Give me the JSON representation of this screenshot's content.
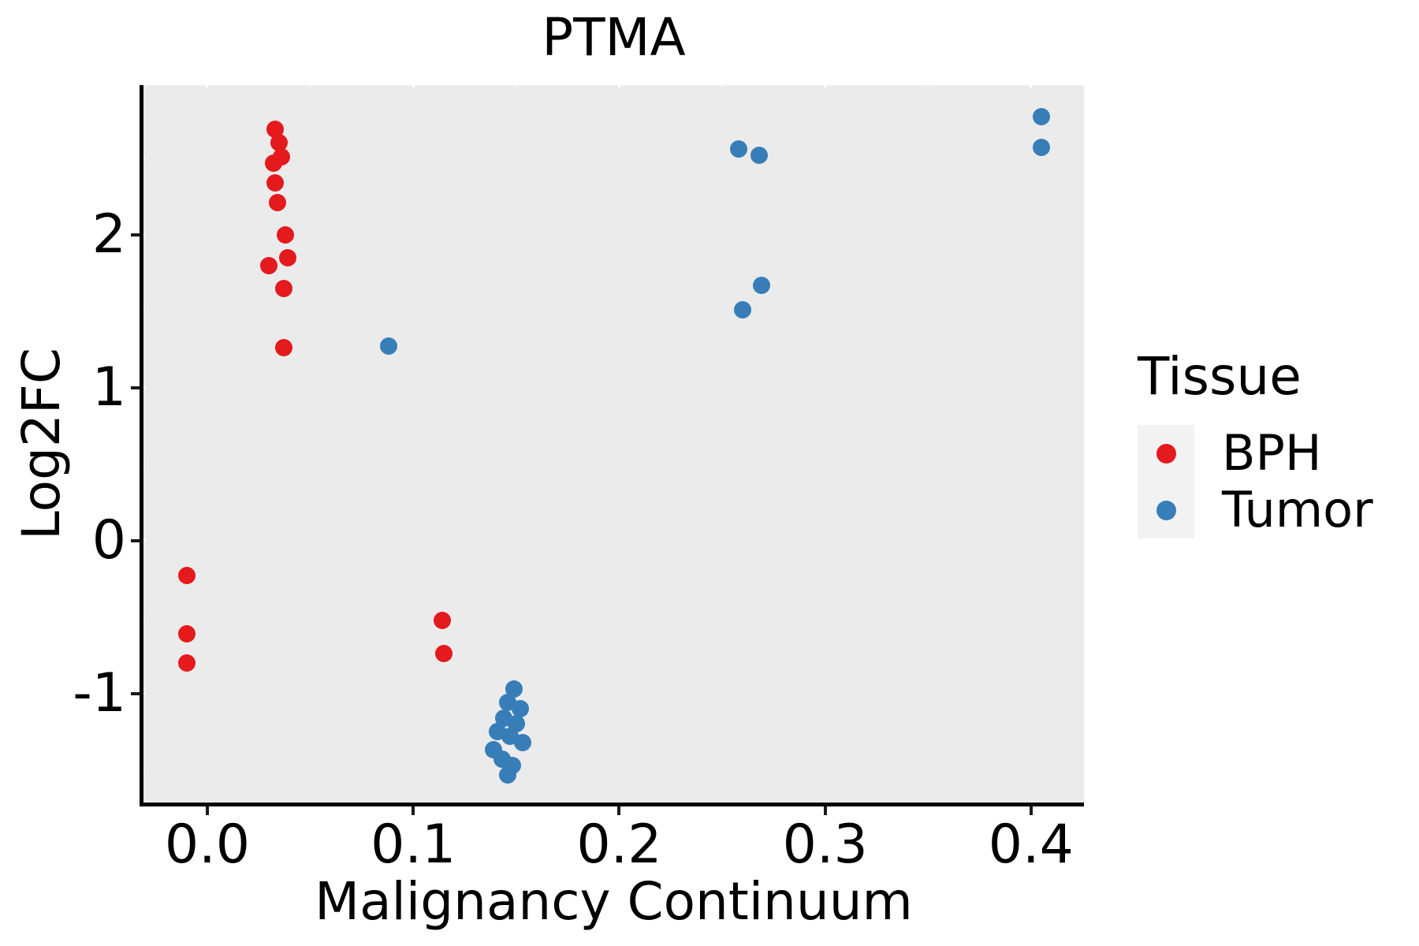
{
  "title": "PTMA",
  "legend": {
    "title": "Tissue",
    "entries": [
      {
        "label": "BPH",
        "color": "#E41A1C"
      },
      {
        "label": "Tumor",
        "color": "#377EB8"
      }
    ]
  },
  "colors": {
    "bph": "#E41A1C",
    "tumor": "#377EB8",
    "panel_background": "#EBEBEB",
    "gridline": "#FFFFFF",
    "legend_key_background": "#F2F2F2",
    "text": "#000000"
  },
  "chart_data": {
    "type": "scatter",
    "title": "PTMA",
    "xlabel": "Malignancy Continuum",
    "ylabel": "Log2FC",
    "xlim": [
      -0.031,
      0.4257
    ],
    "ylim": [
      -1.713,
      2.978
    ],
    "x_ticks": [
      0.0,
      0.1,
      0.2,
      0.3,
      0.4
    ],
    "x_tick_labels": [
      "0.0",
      "0.1",
      "0.2",
      "0.3",
      "0.4"
    ],
    "x_minor_ticks": [
      0.05,
      0.15,
      0.25,
      0.35
    ],
    "y_ticks": [
      -1,
      0,
      1,
      2
    ],
    "y_tick_labels": [
      "-1",
      "0",
      "1",
      "2"
    ],
    "y_minor_ticks": [
      -1.5,
      -0.5,
      0.5,
      1.5,
      2.5
    ],
    "grid": true,
    "legend_position": "right",
    "legend_title": "Tissue",
    "series": [
      {
        "name": "BPH",
        "color": "#E41A1C",
        "points": [
          [
            0.033,
            2.69
          ],
          [
            0.035,
            2.6
          ],
          [
            0.036,
            2.51
          ],
          [
            0.032,
            2.47
          ],
          [
            0.033,
            2.34
          ],
          [
            0.034,
            2.21
          ],
          [
            0.038,
            2.0
          ],
          [
            0.039,
            1.85
          ],
          [
            0.03,
            1.8
          ],
          [
            0.037,
            1.65
          ],
          [
            0.037,
            1.26
          ],
          [
            -0.01,
            -0.23
          ],
          [
            -0.01,
            -0.61
          ],
          [
            -0.01,
            -0.8
          ],
          [
            0.114,
            -0.52
          ],
          [
            0.115,
            -0.74
          ]
        ]
      },
      {
        "name": "Tumor",
        "color": "#377EB8",
        "points": [
          [
            0.088,
            1.27
          ],
          [
            0.258,
            2.56
          ],
          [
            0.268,
            2.52
          ],
          [
            0.26,
            1.51
          ],
          [
            0.269,
            1.67
          ],
          [
            0.405,
            2.77
          ],
          [
            0.405,
            2.57
          ],
          [
            0.149,
            -0.97
          ],
          [
            0.146,
            -1.06
          ],
          [
            0.152,
            -1.1
          ],
          [
            0.144,
            -1.16
          ],
          [
            0.15,
            -1.2
          ],
          [
            0.141,
            -1.25
          ],
          [
            0.147,
            -1.28
          ],
          [
            0.153,
            -1.32
          ],
          [
            0.139,
            -1.37
          ],
          [
            0.143,
            -1.43
          ],
          [
            0.148,
            -1.47
          ],
          [
            0.146,
            -1.53
          ]
        ]
      }
    ]
  }
}
